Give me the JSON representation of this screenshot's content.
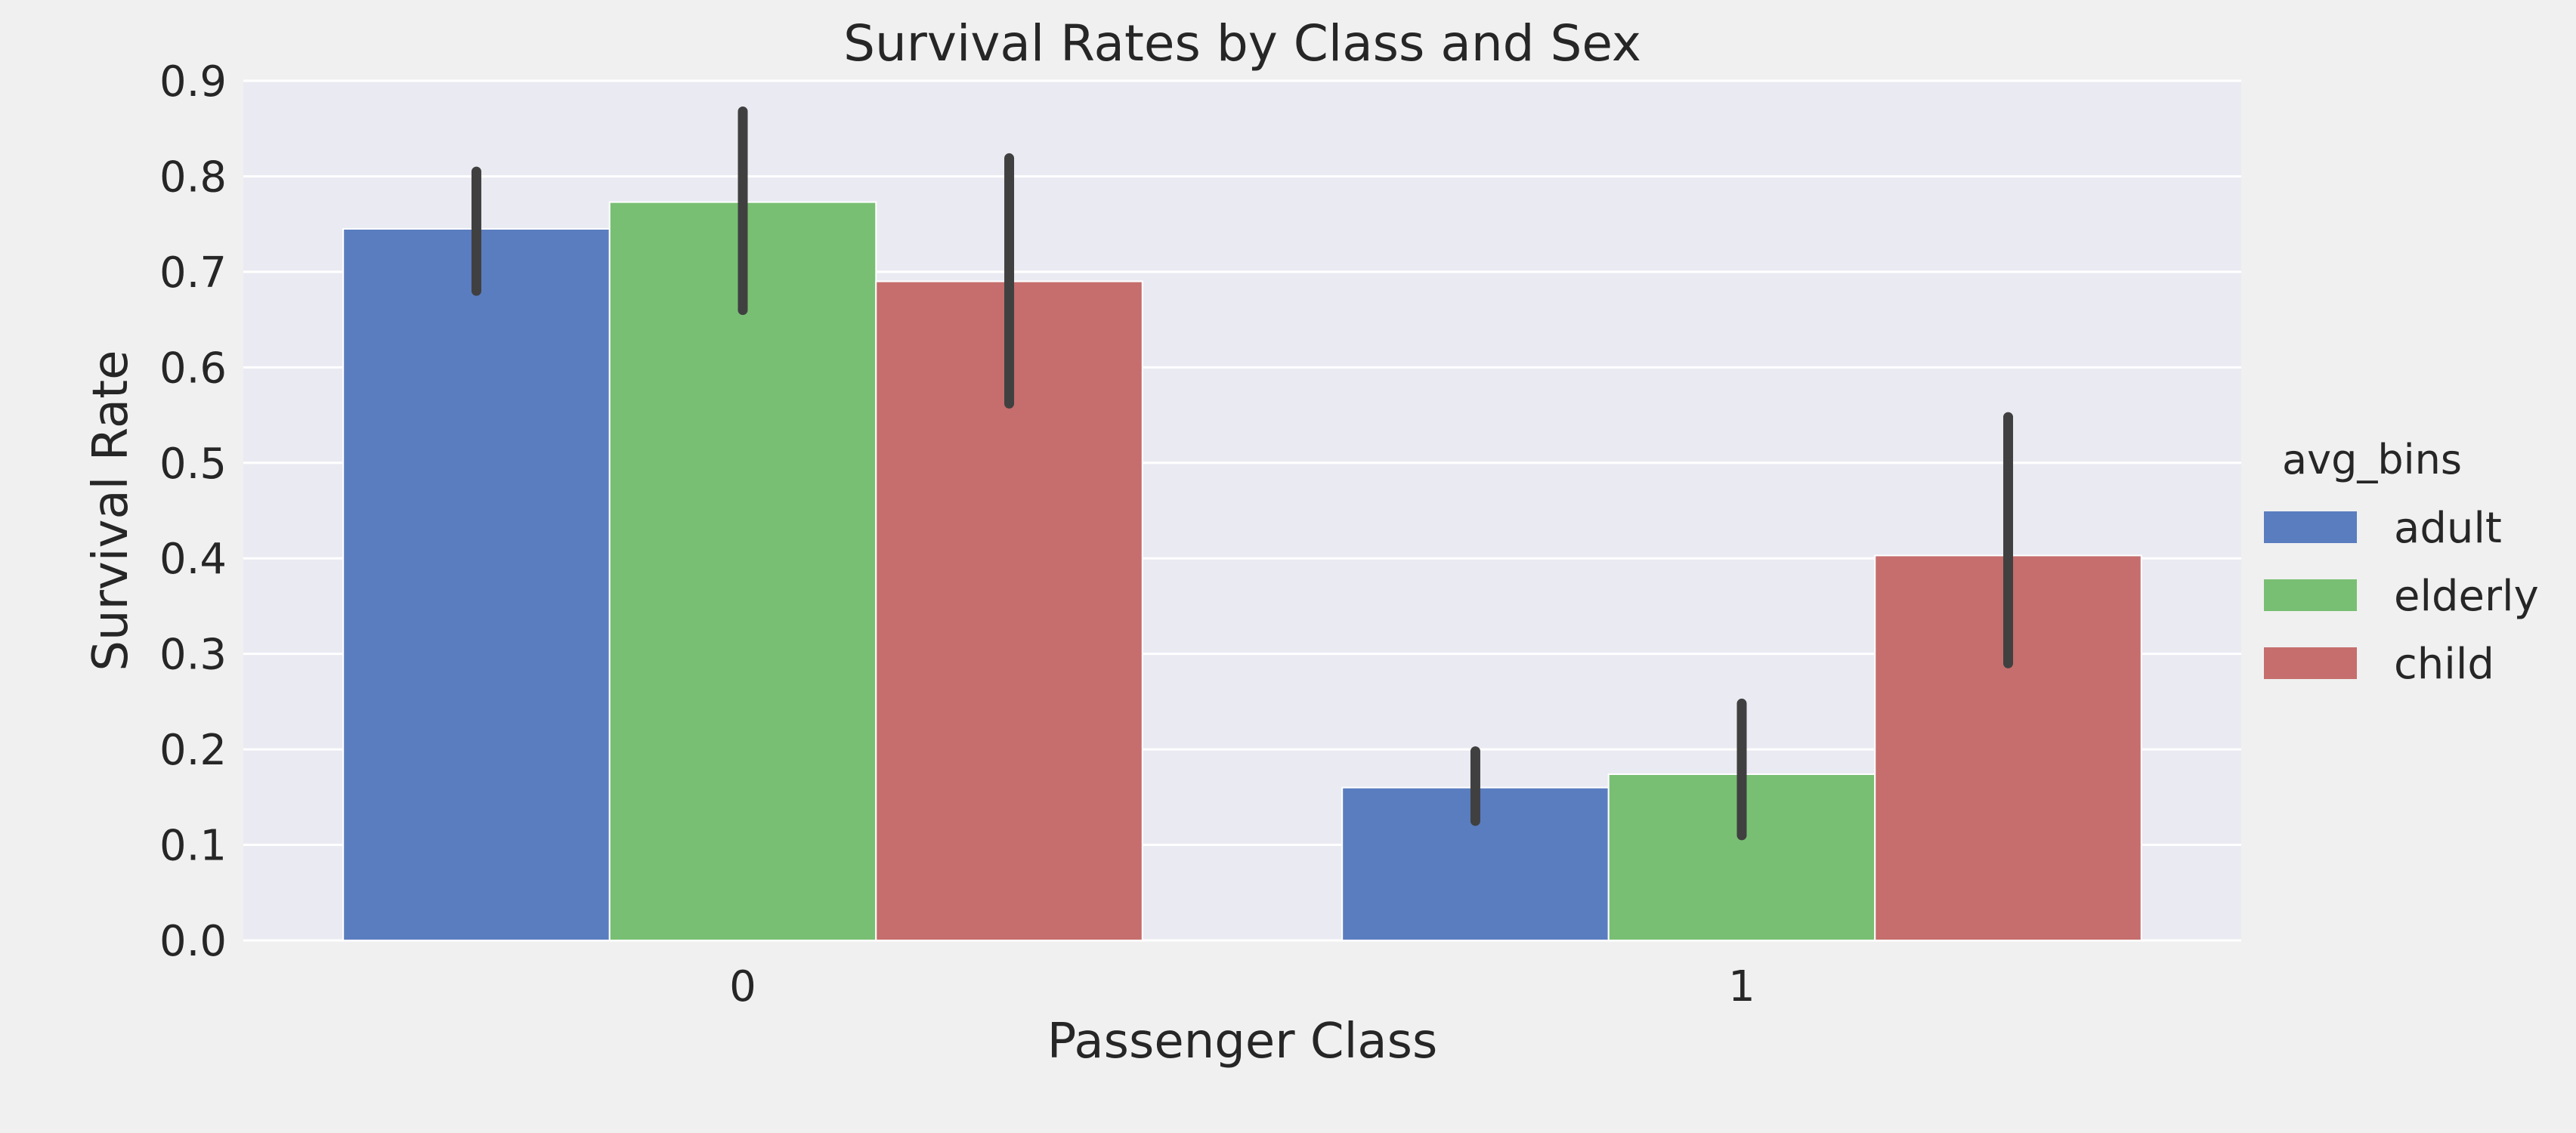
{
  "chart_data": {
    "type": "bar",
    "title": "Survival Rates by Class and Sex",
    "xlabel": "Passenger Class",
    "ylabel": "Survival Rate",
    "categories": [
      "0",
      "1"
    ],
    "ylim": [
      0,
      0.9
    ],
    "yticks": [
      "0.0",
      "0.1",
      "0.2",
      "0.3",
      "0.4",
      "0.5",
      "0.6",
      "0.7",
      "0.8",
      "0.9"
    ],
    "grid": true,
    "legend": {
      "title": "avg_bins",
      "placement": "right"
    },
    "series": [
      {
        "name": "adult",
        "color": "#5a7dbf",
        "values": [
          0.745,
          0.16
        ],
        "ci": [
          [
            0.68,
            0.805
          ],
          [
            0.125,
            0.198
          ]
        ]
      },
      {
        "name": "elderly",
        "color": "#78bf73",
        "values": [
          0.773,
          0.174
        ],
        "ci": [
          [
            0.66,
            0.868
          ],
          [
            0.11,
            0.248
          ]
        ]
      },
      {
        "name": "child",
        "color": "#c56e6d",
        "values": [
          0.69,
          0.403
        ],
        "ci": [
          [
            0.562,
            0.819
          ],
          [
            0.29,
            0.548
          ]
        ]
      }
    ],
    "errorbar_color": "#404040",
    "plot_bg": "#eaeaf2",
    "grid_color": "#ffffff"
  }
}
